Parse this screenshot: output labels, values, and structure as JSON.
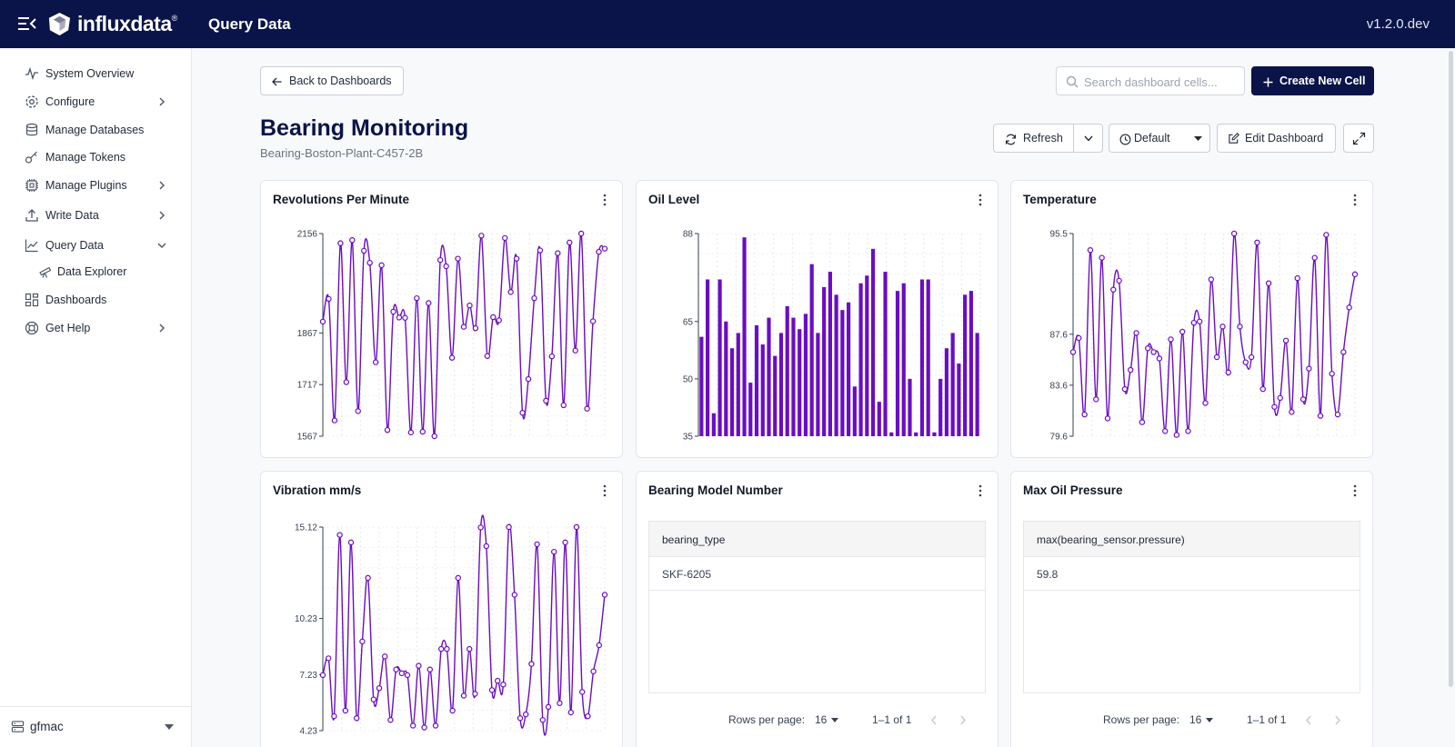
{
  "header": {
    "logo": "influxdata",
    "logo_mark": "®",
    "title": "Query Data",
    "version": "v1.2.0.dev"
  },
  "sidebar": {
    "items": [
      {
        "label": "System Overview",
        "icon": "activity-icon"
      },
      {
        "label": "Configure",
        "icon": "gear-icon"
      },
      {
        "label": "Manage Databases",
        "icon": "database-icon"
      },
      {
        "label": "Manage Tokens",
        "icon": "key-icon"
      },
      {
        "label": "Manage Plugins",
        "icon": "chip-icon"
      },
      {
        "label": "Write Data",
        "icon": "upload-icon"
      },
      {
        "label": "Query Data",
        "icon": "chart-line-icon"
      },
      {
        "label": "Data Explorer",
        "icon": "telescope-icon"
      },
      {
        "label": "Dashboards",
        "icon": "grid-icon"
      },
      {
        "label": "Get Help",
        "icon": "lifebuoy-icon"
      }
    ],
    "footer": {
      "label": "gfmac",
      "icon": "server-icon"
    }
  },
  "toolbar": {
    "back_label": "Back to Dashboards",
    "search_placeholder": "Search dashboard cells...",
    "create_label": "Create New Cell",
    "refresh_label": "Refresh",
    "timezone_label": "Default",
    "edit_label": "Edit Dashboard"
  },
  "dashboard": {
    "title": "Bearing Monitoring",
    "subtitle": "Bearing-Boston-Plant-C457-2B"
  },
  "cells": {
    "rpm": {
      "title": "Revolutions Per Minute"
    },
    "oil": {
      "title": "Oil Level"
    },
    "temp": {
      "title": "Temperature"
    },
    "vib": {
      "title": "Vibration mm/s"
    },
    "model": {
      "title": "Bearing Model Number",
      "column": "bearing_type",
      "value": "SKF-6205",
      "rows_label": "Rows per page:",
      "rows_value": "16",
      "range": "1–1 of 1"
    },
    "pressure": {
      "title": "Max Oil Pressure",
      "column": "max(bearing_sensor.pressure)",
      "value": "59.8",
      "rows_label": "Rows per page:",
      "rows_value": "16",
      "range": "1–1 of 1"
    }
  },
  "colors": {
    "accent": "#6a0dc4",
    "navy": "#0a1449"
  },
  "chart_data": [
    {
      "id": "rpm",
      "type": "line",
      "yticks": [
        "2156",
        "1867",
        "1717",
        "1567"
      ],
      "tick_values": [
        2156,
        1867,
        1717,
        1567
      ],
      "ylim": [
        1567,
        2156
      ],
      "values": [
        1900,
        1966,
        1613,
        2128,
        1724,
        2137,
        1640,
        2106,
        2071,
        1782,
        2064,
        1585,
        1929,
        1912,
        1911,
        1578,
        1968,
        1580,
        1954,
        1567,
        2079,
        2061,
        1795,
        2083,
        1885,
        1947,
        1881,
        2150,
        1800,
        1913,
        1904,
        2143,
        1986,
        2083,
        1635,
        1733,
        1968,
        2107,
        1670,
        1799,
        2099,
        1657,
        2130,
        1816,
        2156,
        1647,
        1901,
        2103,
        2112
      ],
      "grid": true
    },
    {
      "id": "oil",
      "type": "bar",
      "yticks": [
        "88",
        "65",
        "50",
        "35"
      ],
      "tick_values": [
        88,
        65,
        50,
        35
      ],
      "ylim": [
        35,
        88
      ],
      "values": [
        61,
        76,
        41,
        76,
        65,
        58,
        62,
        87,
        49,
        64,
        59,
        66,
        56,
        62,
        69,
        66,
        63,
        67,
        80,
        62,
        74,
        78,
        72,
        68,
        70,
        48,
        75,
        77,
        84,
        44,
        78,
        36,
        73,
        75,
        50,
        36,
        76,
        76,
        36,
        50,
        58,
        62,
        54,
        72,
        73,
        62
      ],
      "grid": true
    },
    {
      "id": "temp",
      "type": "line",
      "yticks": [
        "95.5",
        "87.6",
        "83.6",
        "79.6"
      ],
      "tick_values": [
        95.5,
        87.6,
        83.6,
        79.6
      ],
      "ylim": [
        79.6,
        95.5
      ],
      "values": [
        86.2,
        87.3,
        81.3,
        94.2,
        82.5,
        93.6,
        81.0,
        91.1,
        91.8,
        83.3,
        84.8,
        87.7,
        80.7,
        86.5,
        86.2,
        85.7,
        80.0,
        87.2,
        79.7,
        87.8,
        80.0,
        88.5,
        88.6,
        82.2,
        91.9,
        85.8,
        88.2,
        84.6,
        95.5,
        88.2,
        85.4,
        85.8,
        94.8,
        83.3,
        91.6,
        81.9,
        82.6,
        87.1,
        81.5,
        92.0,
        82.5,
        84.9,
        93.6,
        81.2,
        95.4,
        84.5,
        81.3,
        86.2,
        89.7,
        92.3
      ],
      "grid": true
    },
    {
      "id": "vib",
      "type": "line",
      "yticks": [
        "15.12",
        "10.23",
        "7.23",
        "4.23"
      ],
      "tick_values": [
        15.12,
        10.23,
        7.23,
        4.23
      ],
      "ylim": [
        4.23,
        15.12
      ],
      "values": [
        7.2,
        8.1,
        5.0,
        14.7,
        5.3,
        14.3,
        4.9,
        9.0,
        12.4,
        5.9,
        6.5,
        8.2,
        4.8,
        7.5,
        7.3,
        7.2,
        4.5,
        7.7,
        4.4,
        7.5,
        4.5,
        8.6,
        8.6,
        5.3,
        12.4,
        6.1,
        8.6,
        6.2,
        15.1,
        14.1,
        6.4,
        6.9,
        6.7,
        15.12,
        11.5,
        4.9,
        5.1,
        7.8,
        14.2,
        4.8,
        5.5,
        13.8,
        5.7,
        14.3,
        5.2,
        15.12,
        6.3,
        5.0,
        7.4,
        8.8,
        11.5
      ],
      "grid": true
    }
  ]
}
